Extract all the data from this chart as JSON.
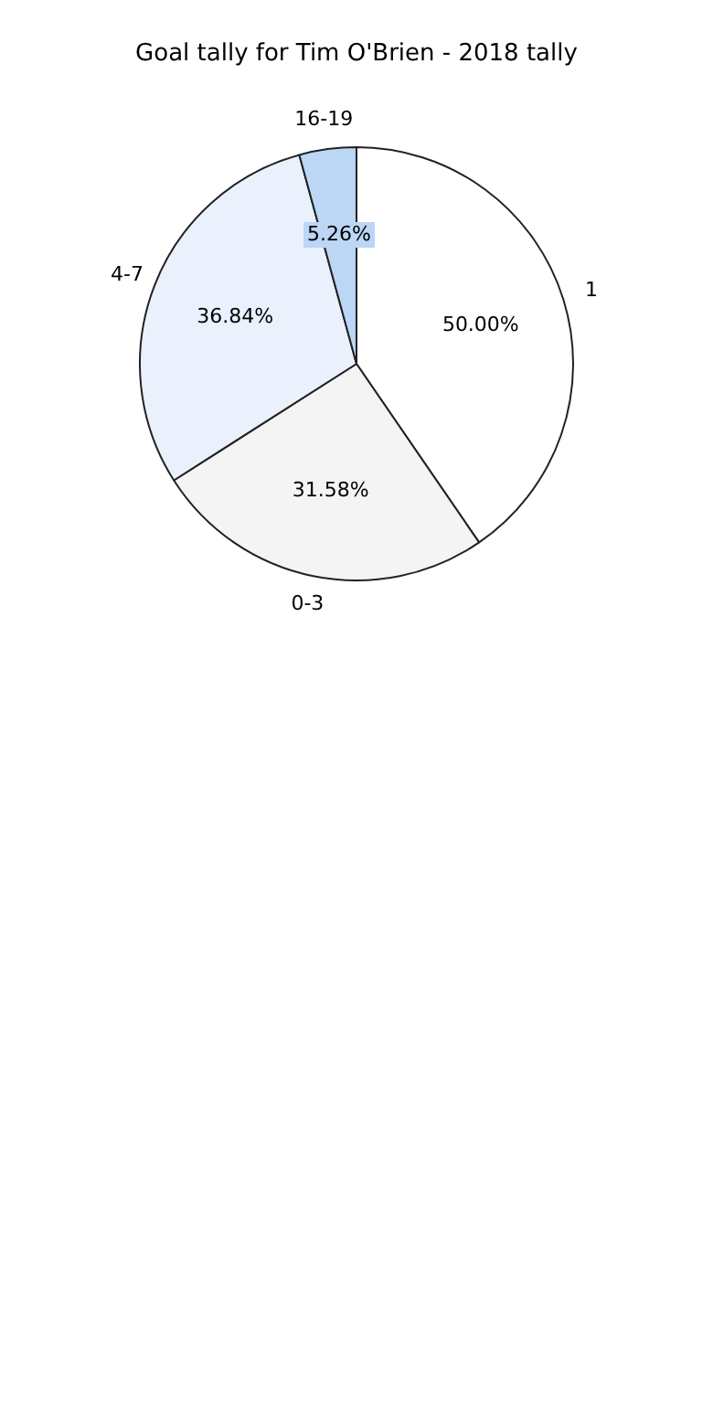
{
  "chart_data": {
    "type": "pie",
    "title": "Goal tally for Tim O'Brien - 2018 tally",
    "categories": [
      "1",
      "0-3",
      "4-7",
      "16-19"
    ],
    "values": [
      50.0,
      31.58,
      36.84,
      5.26
    ],
    "value_labels": [
      "50.00%",
      "31.58%",
      "36.84%",
      "5.26%"
    ],
    "colors": [
      "#ffffff",
      "#f4f4f4",
      "#eaf1fd",
      "#bcd6f5"
    ]
  }
}
